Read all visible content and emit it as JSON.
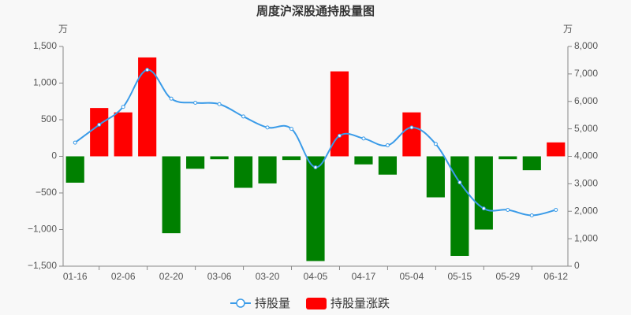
{
  "chart_data": {
    "type": "bar",
    "title": "周度沪深股通持股量图",
    "y_unit": "万",
    "y2_unit": "万",
    "categories": [
      "01-16",
      null,
      "02-06",
      null,
      "02-20",
      null,
      "03-06",
      null,
      "03-20",
      null,
      "04-05",
      null,
      "04-17",
      null,
      "05-04",
      null,
      "05-15",
      null,
      "05-29",
      null,
      "06-12"
    ],
    "series": [
      {
        "name": "持股量",
        "type": "line",
        "axis": "y2",
        "color": "#3a9be8",
        "values": [
          4500,
          5150,
          5800,
          7150,
          6100,
          5950,
          5900,
          5450,
          5050,
          5000,
          3600,
          4750,
          4650,
          4400,
          5050,
          4450,
          3050,
          2100,
          2050,
          1850,
          2050
        ]
      },
      {
        "name": "持股量涨跌",
        "type": "bar",
        "color": "#ff0000",
        "negative_color": "#008000",
        "values": [
          -360,
          660,
          600,
          1350,
          -1050,
          -170,
          -40,
          -430,
          -370,
          -50,
          -1430,
          1160,
          -110,
          -250,
          600,
          -560,
          -1360,
          -1000,
          -40,
          -190,
          190
        ]
      }
    ],
    "ylim": [
      -1500,
      1500
    ],
    "yticks": [
      {
        "value": -1500,
        "label": "−1,500"
      },
      {
        "value": -1000,
        "label": "−1,000"
      },
      {
        "value": -500,
        "label": "−500"
      },
      0,
      500,
      {
        "value": 1000,
        "label": "1,000"
      },
      {
        "value": 1500,
        "label": "1,500"
      }
    ],
    "y2lim": [
      0,
      8000
    ],
    "y2ticks": [
      0,
      {
        "value": 1000,
        "label": "1,000"
      },
      {
        "value": 2000,
        "label": "2,000"
      },
      {
        "value": 3000,
        "label": "3,000"
      },
      {
        "value": 4000,
        "label": "4,000"
      },
      {
        "value": 5000,
        "label": "5,000"
      },
      {
        "value": 6000,
        "label": "6,000"
      },
      {
        "value": 7000,
        "label": "7,000"
      },
      {
        "value": 8000,
        "label": "8,000"
      }
    ]
  }
}
